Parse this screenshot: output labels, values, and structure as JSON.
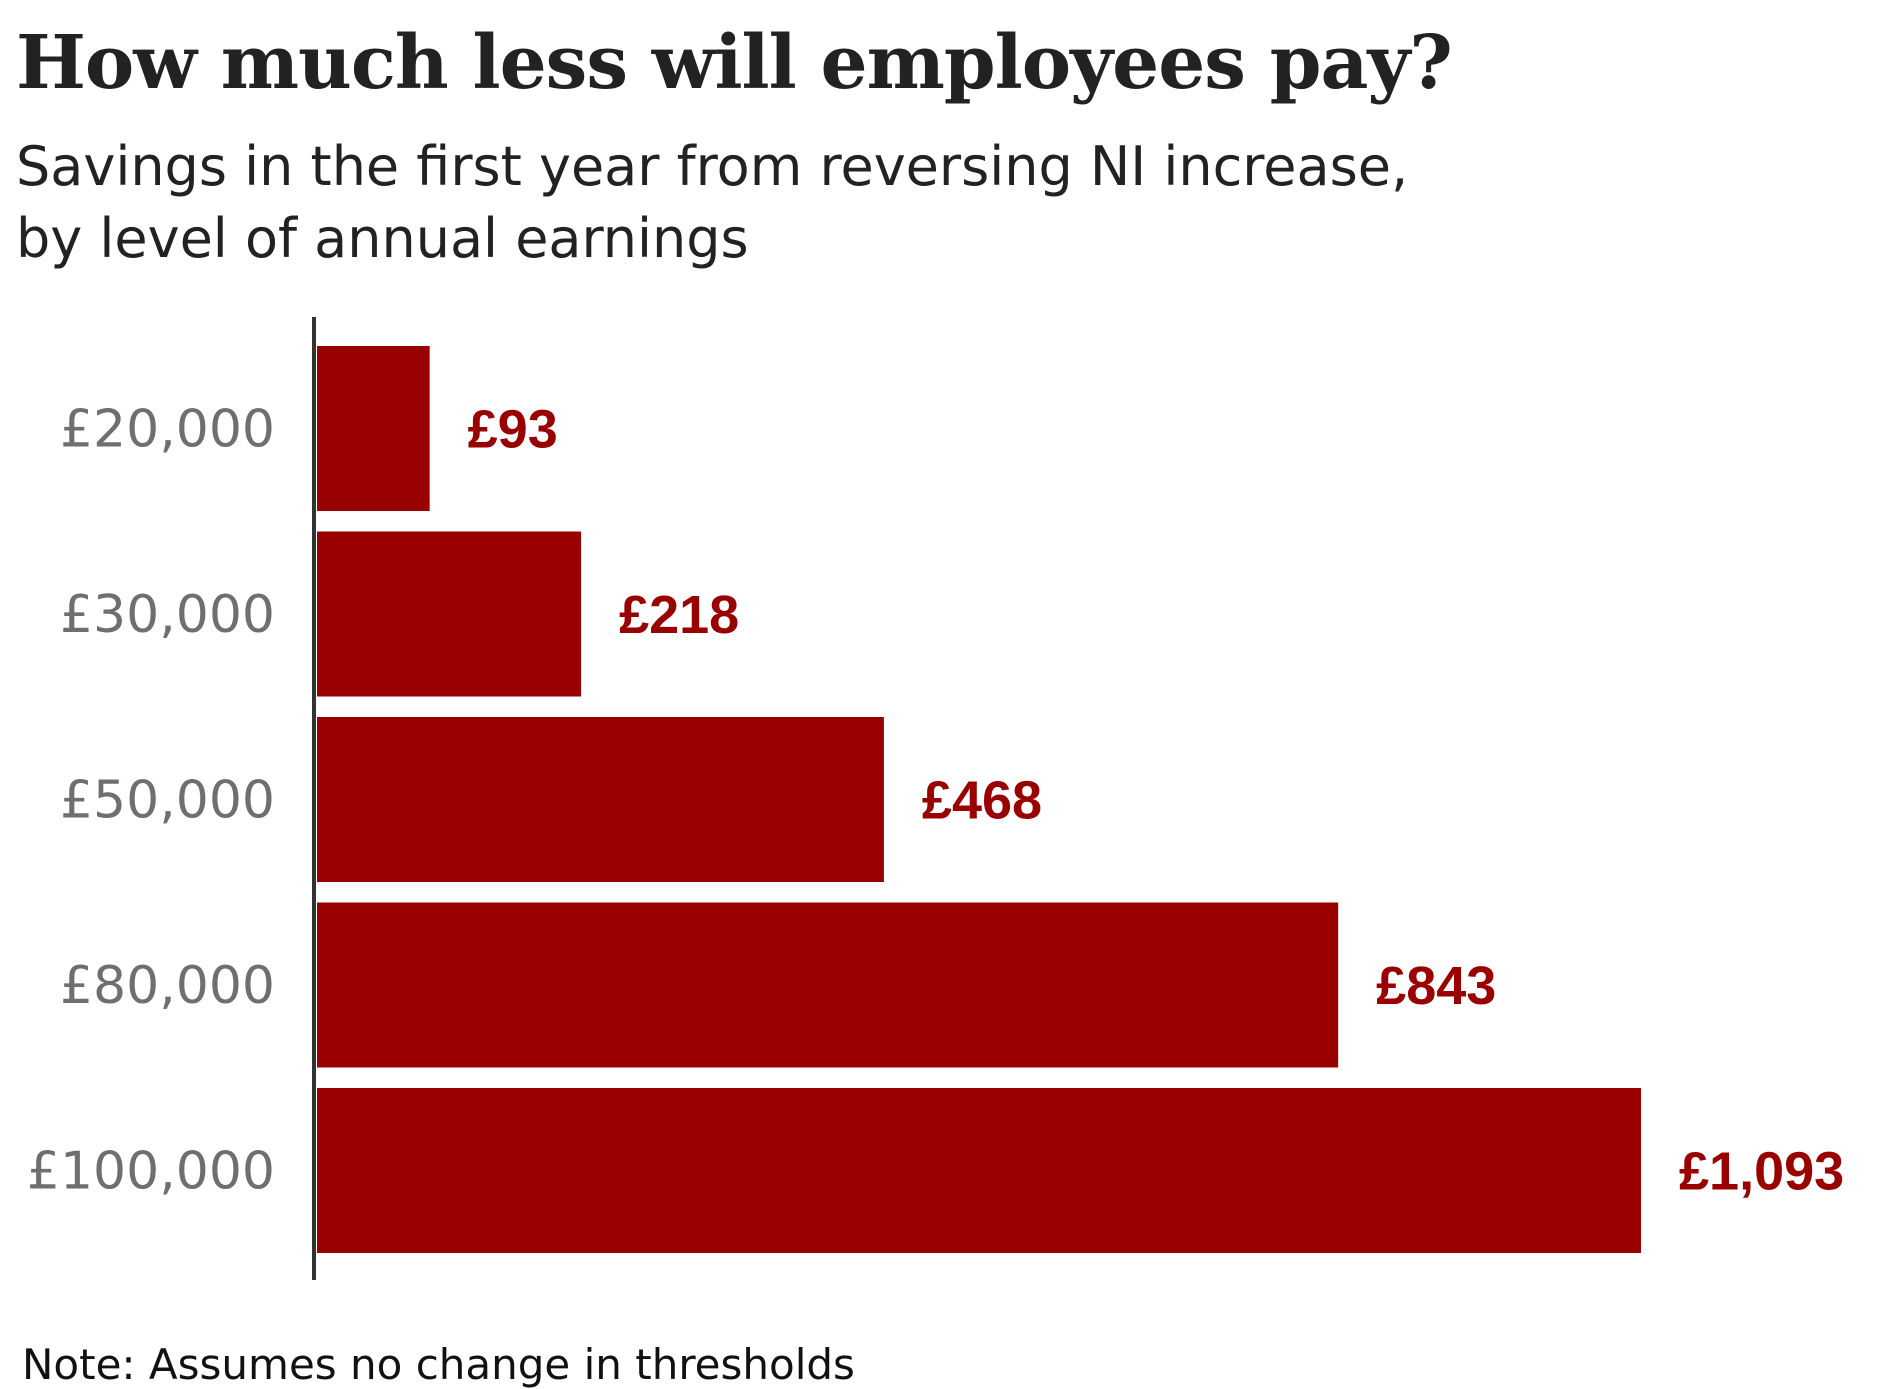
{
  "chart_data": {
    "type": "bar",
    "orientation": "horizontal",
    "title": "How much less will employees pay?",
    "subtitle": [
      "Savings in the first year from reversing NI increase,",
      "by level of annual earnings"
    ],
    "categories": [
      "£20,000",
      "£30,000",
      "£50,000",
      "£80,000",
      "£100,000"
    ],
    "values": [
      93,
      218,
      468,
      843,
      1093
    ],
    "value_labels": [
      "£93",
      "£218",
      "£468",
      "£843",
      "£1,093"
    ],
    "xlabel": "",
    "ylabel": "Annual earnings",
    "xlim": [
      0,
      1093
    ],
    "grid": false,
    "bar_color": "#990000",
    "note": "Note: Assumes no change in thresholds"
  }
}
